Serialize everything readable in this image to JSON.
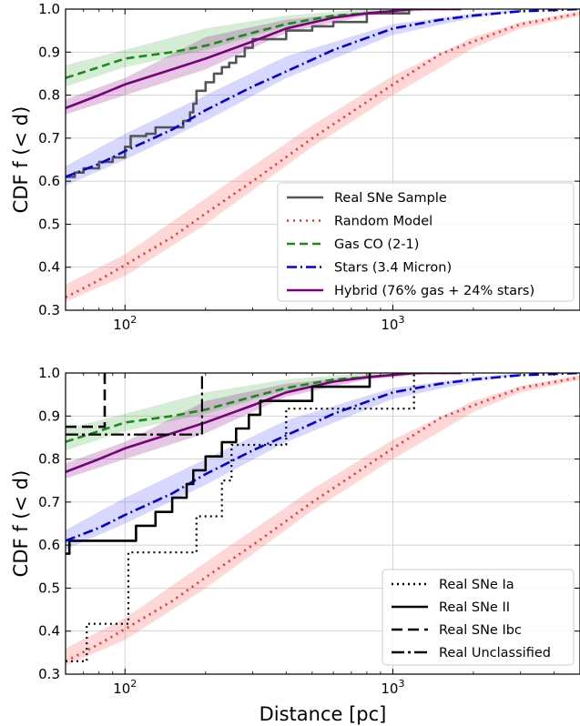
{
  "chart_data": [
    {
      "type": "line",
      "panel": "top",
      "xscale": "log",
      "xlim": [
        60,
        5000
      ],
      "ylim": [
        0.3,
        1.0
      ],
      "xlabel": "",
      "ylabel": "CDF f (< d)",
      "x_ticks": [
        {
          "value": 100,
          "label": "10^2"
        },
        {
          "value": 1000,
          "label": "10^3"
        }
      ],
      "y_ticks": [
        0.3,
        0.4,
        0.5,
        0.6,
        0.7,
        0.8,
        0.9,
        1.0
      ],
      "grid": true,
      "legend_position": "lower-right",
      "bands": [
        {
          "color": "#4b4bff",
          "alpha": 0.22,
          "x": [
            60,
            100,
            200,
            400,
            1000,
            2000,
            3000
          ],
          "lower": [
            0.59,
            0.65,
            0.74,
            0.84,
            0.94,
            0.98,
            0.995
          ],
          "upper": [
            0.635,
            0.71,
            0.8,
            0.89,
            0.965,
            0.99,
            1.0
          ]
        },
        {
          "color": "#ff4b4b",
          "alpha": 0.22,
          "x": [
            60,
            100,
            200,
            500,
            1000,
            2000,
            3000,
            5000
          ],
          "lower": [
            0.32,
            0.38,
            0.5,
            0.68,
            0.8,
            0.91,
            0.955,
            0.985
          ],
          "upper": [
            0.36,
            0.43,
            0.56,
            0.73,
            0.845,
            0.935,
            0.97,
            0.995
          ]
        },
        {
          "color": "#3faa3f",
          "alpha": 0.22,
          "x": [
            60,
            100,
            200,
            400,
            800,
            1500
          ],
          "lower": [
            0.82,
            0.865,
            0.905,
            0.96,
            0.99,
            1.0
          ],
          "upper": [
            0.87,
            0.905,
            0.955,
            0.985,
            1.0,
            1.0
          ]
        },
        {
          "color": "#800080",
          "alpha": 0.22,
          "x": [
            60,
            100,
            200,
            400,
            800,
            1500
          ],
          "lower": [
            0.755,
            0.8,
            0.86,
            0.945,
            0.985,
            1.0
          ],
          "upper": [
            0.79,
            0.84,
            0.935,
            0.975,
            0.995,
            1.0
          ]
        }
      ],
      "series": [
        {
          "name": "Real SNe Sample",
          "color": "#555555",
          "width": 2.6,
          "dash": "solid",
          "step": true,
          "x": [
            60,
            65,
            70,
            80,
            90,
            100,
            105,
            120,
            130,
            150,
            165,
            175,
            180,
            185,
            200,
            215,
            230,
            245,
            260,
            280,
            300,
            400,
            500,
            600,
            800,
            1150
          ],
          "y": [
            0.61,
            0.62,
            0.63,
            0.645,
            0.655,
            0.68,
            0.705,
            0.71,
            0.725,
            0.725,
            0.74,
            0.76,
            0.78,
            0.81,
            0.83,
            0.85,
            0.865,
            0.875,
            0.89,
            0.91,
            0.93,
            0.95,
            0.96,
            0.97,
            0.99,
            1.0
          ]
        },
        {
          "name": "Random Model",
          "color": "#ff2a2a",
          "width": 2.6,
          "dash": "2,5",
          "step": false,
          "x": [
            60,
            80,
            100,
            150,
            200,
            300,
            500,
            700,
            1000,
            1500,
            2000,
            3000,
            5000
          ],
          "y": [
            0.33,
            0.37,
            0.405,
            0.47,
            0.525,
            0.6,
            0.7,
            0.76,
            0.825,
            0.895,
            0.925,
            0.965,
            0.99
          ]
        },
        {
          "name": "Gas CO (2-1)",
          "color": "#1a8a1a",
          "width": 2.6,
          "dash": "9,5",
          "step": false,
          "x": [
            60,
            80,
            100,
            150,
            200,
            300,
            400,
            600,
            800,
            1200,
            1800
          ],
          "y": [
            0.84,
            0.865,
            0.885,
            0.9,
            0.915,
            0.945,
            0.965,
            0.985,
            0.99,
            1.0,
            1.0
          ]
        },
        {
          "name": "Stars (3.4 Micron)",
          "color": "#0000dd",
          "width": 2.6,
          "dash": "11,4,2,4",
          "step": false,
          "x": [
            60,
            80,
            100,
            150,
            200,
            300,
            400,
            600,
            1000,
            1500,
            2000,
            3000,
            5000
          ],
          "y": [
            0.61,
            0.64,
            0.67,
            0.72,
            0.765,
            0.82,
            0.855,
            0.905,
            0.955,
            0.975,
            0.985,
            0.995,
            1.0
          ]
        },
        {
          "name": "Hybrid (76% gas + 24% stars)",
          "color": "#7a007a",
          "width": 2.6,
          "dash": "solid",
          "step": false,
          "x": [
            60,
            80,
            100,
            150,
            200,
            300,
            400,
            600,
            800,
            1200,
            1800
          ],
          "y": [
            0.77,
            0.8,
            0.825,
            0.86,
            0.885,
            0.925,
            0.955,
            0.98,
            0.99,
            1.0,
            1.0
          ]
        }
      ],
      "legend": [
        {
          "label": "Real SNe Sample",
          "color": "#555555",
          "dash": "solid"
        },
        {
          "label": "Random Model",
          "color": "#ff2a2a",
          "dash": "2,5"
        },
        {
          "label": "Gas CO (2-1)",
          "color": "#1a8a1a",
          "dash": "9,5"
        },
        {
          "label": "Stars (3.4 Micron)",
          "color": "#0000dd",
          "dash": "11,4,2,4"
        },
        {
          "label": "Hybrid (76% gas + 24% stars)",
          "color": "#7a007a",
          "dash": "solid"
        }
      ]
    },
    {
      "type": "line",
      "panel": "bottom",
      "xscale": "log",
      "xlim": [
        60,
        5000
      ],
      "ylim": [
        0.3,
        1.0
      ],
      "xlabel": "Distance [pc]",
      "ylabel": "CDF f (< d)",
      "x_ticks": [
        {
          "value": 100,
          "label": "10^2"
        },
        {
          "value": 1000,
          "label": "10^3"
        }
      ],
      "y_ticks": [
        0.3,
        0.4,
        0.5,
        0.6,
        0.7,
        0.8,
        0.9,
        1.0
      ],
      "grid": true,
      "legend_position": "lower-right",
      "bands": [
        {
          "color": "#4b4bff",
          "alpha": 0.22,
          "x": [
            60,
            100,
            200,
            400,
            1000,
            2000,
            3000
          ],
          "lower": [
            0.59,
            0.65,
            0.74,
            0.84,
            0.94,
            0.98,
            0.995
          ],
          "upper": [
            0.635,
            0.71,
            0.8,
            0.89,
            0.965,
            0.99,
            1.0
          ]
        },
        {
          "color": "#ff4b4b",
          "alpha": 0.22,
          "x": [
            60,
            100,
            200,
            500,
            1000,
            2000,
            3000,
            5000
          ],
          "lower": [
            0.32,
            0.38,
            0.5,
            0.68,
            0.8,
            0.91,
            0.955,
            0.985
          ],
          "upper": [
            0.36,
            0.43,
            0.56,
            0.73,
            0.845,
            0.935,
            0.97,
            0.995
          ]
        },
        {
          "color": "#3faa3f",
          "alpha": 0.22,
          "x": [
            60,
            100,
            200,
            400,
            800,
            1500
          ],
          "lower": [
            0.82,
            0.865,
            0.905,
            0.96,
            0.99,
            1.0
          ],
          "upper": [
            0.87,
            0.905,
            0.955,
            0.985,
            1.0,
            1.0
          ]
        },
        {
          "color": "#800080",
          "alpha": 0.22,
          "x": [
            60,
            100,
            200,
            400,
            800,
            1500
          ],
          "lower": [
            0.755,
            0.8,
            0.86,
            0.945,
            0.985,
            1.0
          ],
          "upper": [
            0.79,
            0.84,
            0.935,
            0.975,
            0.995,
            1.0
          ]
        }
      ],
      "series": [
        {
          "name": "Random Model",
          "color": "#ff2a2a",
          "width": 2.6,
          "dash": "2,5",
          "step": false,
          "x": [
            60,
            80,
            100,
            150,
            200,
            300,
            500,
            700,
            1000,
            1500,
            2000,
            3000,
            5000
          ],
          "y": [
            0.33,
            0.37,
            0.405,
            0.47,
            0.525,
            0.6,
            0.7,
            0.76,
            0.825,
            0.895,
            0.925,
            0.965,
            0.99
          ]
        },
        {
          "name": "Gas CO (2-1)",
          "color": "#1a8a1a",
          "width": 2.6,
          "dash": "9,5",
          "step": false,
          "x": [
            60,
            80,
            100,
            150,
            200,
            300,
            400,
            600,
            800,
            1200,
            1800
          ],
          "y": [
            0.84,
            0.865,
            0.885,
            0.9,
            0.915,
            0.945,
            0.965,
            0.985,
            0.99,
            1.0,
            1.0
          ]
        },
        {
          "name": "Stars (3.4 Micron)",
          "color": "#0000dd",
          "width": 2.6,
          "dash": "11,4,2,4",
          "step": false,
          "x": [
            60,
            80,
            100,
            150,
            200,
            300,
            400,
            600,
            1000,
            1500,
            2000,
            3000,
            5000
          ],
          "y": [
            0.61,
            0.64,
            0.67,
            0.72,
            0.765,
            0.82,
            0.855,
            0.905,
            0.955,
            0.975,
            0.985,
            0.995,
            1.0
          ]
        },
        {
          "name": "Hybrid (76% gas + 24% stars)",
          "color": "#7a007a",
          "width": 2.6,
          "dash": "solid",
          "step": false,
          "x": [
            60,
            80,
            100,
            150,
            200,
            300,
            400,
            600,
            800,
            1200,
            1800
          ],
          "y": [
            0.77,
            0.8,
            0.825,
            0.86,
            0.885,
            0.925,
            0.955,
            0.98,
            0.99,
            1.0,
            1.0
          ]
        },
        {
          "name": "Real SNe Ia",
          "color": "#000000",
          "width": 2.2,
          "dash": "2,4",
          "step": true,
          "x": [
            60,
            72,
            103,
            185,
            230,
            250,
            345,
            400,
            1100,
            1200
          ],
          "y": [
            0.33,
            0.417,
            0.583,
            0.667,
            0.75,
            0.833,
            0.833,
            0.917,
            0.917,
            1.0
          ]
        },
        {
          "name": "Real SNe II",
          "color": "#000000",
          "width": 2.6,
          "dash": "solid",
          "step": true,
          "x": [
            60,
            62,
            110,
            130,
            150,
            170,
            180,
            200,
            230,
            260,
            290,
            320,
            380,
            500,
            800,
            820
          ],
          "y": [
            0.58,
            0.61,
            0.645,
            0.677,
            0.71,
            0.742,
            0.774,
            0.806,
            0.839,
            0.871,
            0.903,
            0.935,
            0.935,
            0.968,
            0.968,
            1.0
          ]
        },
        {
          "name": "Real SNe Ibc",
          "color": "#000000",
          "width": 2.6,
          "dash": "12,6",
          "step": true,
          "x": [
            60,
            82,
            84
          ],
          "y": [
            0.875,
            0.875,
            1.0
          ]
        },
        {
          "name": "Real Unclassified",
          "color": "#000000",
          "width": 2.2,
          "dash": "14,4,3,4",
          "step": true,
          "x": [
            60,
            192,
            194
          ],
          "y": [
            0.857,
            0.857,
            1.0
          ]
        }
      ],
      "legend": [
        {
          "label": "Real SNe Ia",
          "color": "#000000",
          "dash": "2,4"
        },
        {
          "label": "Real SNe II",
          "color": "#000000",
          "dash": "solid"
        },
        {
          "label": "Real SNe Ibc",
          "color": "#000000",
          "dash": "12,6"
        },
        {
          "label": "Real Unclassified",
          "color": "#000000",
          "dash": "14,4,3,4"
        }
      ]
    }
  ]
}
